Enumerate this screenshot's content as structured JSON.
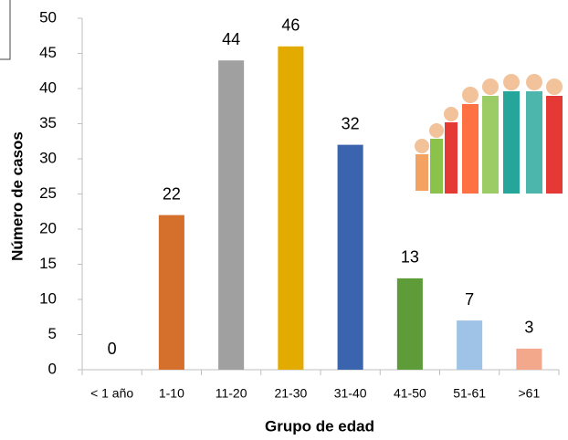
{
  "chart_data": {
    "type": "bar",
    "x_label": "Grupo de edad",
    "y_label": "Número de casos",
    "categories": [
      "< 1 año",
      "1-10",
      "11-20",
      "21-30",
      "31-40",
      "41-50",
      "51-61",
      ">61"
    ],
    "values": [
      0,
      22,
      44,
      46,
      32,
      13,
      7,
      3
    ],
    "colors": [
      "#4472c4",
      "#d56f2c",
      "#a0a0a0",
      "#e3aa00",
      "#3a64ae",
      "#5e9c3a",
      "#9ec3e6",
      "#f3a88c"
    ],
    "ylim": [
      0,
      50
    ],
    "yticks": [
      0,
      5,
      10,
      15,
      20,
      25,
      30,
      35,
      40,
      45,
      50
    ],
    "grid": false
  }
}
